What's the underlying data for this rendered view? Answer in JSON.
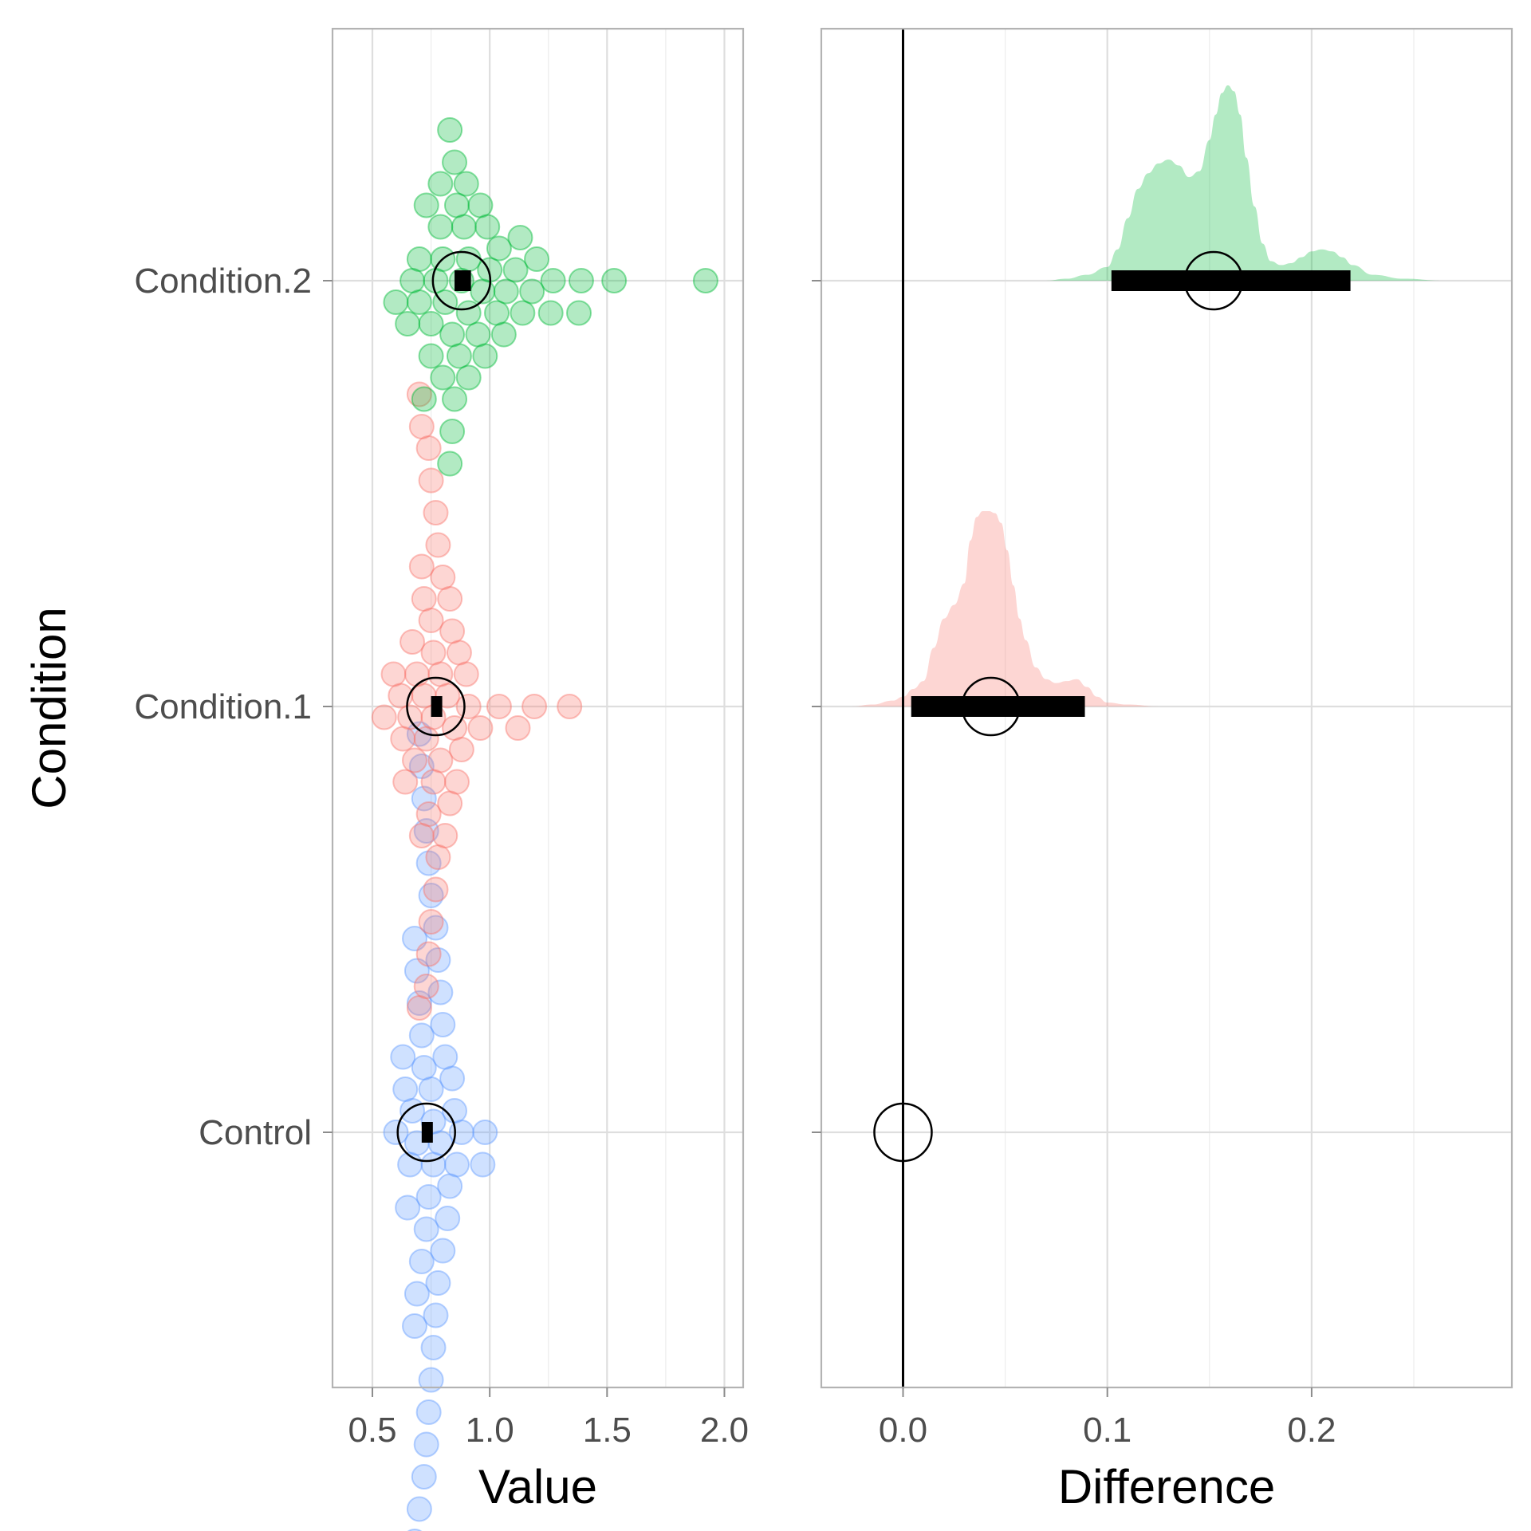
{
  "chart_data": [
    {
      "type": "scatter",
      "subtype": "swarm",
      "xlabel": "Value",
      "ylabel": "Condition",
      "xlim": [
        0.33,
        2.08
      ],
      "x_ticks": [
        "0.5",
        "1.0",
        "1.5",
        "2.0"
      ],
      "x_tick_values": [
        0.5,
        1.0,
        1.5,
        2.0
      ],
      "categories": [
        "Control",
        "Condition.1",
        "Condition.2"
      ],
      "grid": true,
      "legend": "none",
      "series": [
        {
          "category": "Control",
          "color": "#619CFF",
          "mean": 0.73,
          "ci": [
            0.71,
            0.75
          ],
          "values": [
            0.64,
            0.68,
            0.7,
            0.72,
            0.74,
            0.76,
            0.78,
            0.8,
            0.83,
            0.86,
            0.65,
            0.69,
            0.73,
            0.77,
            0.81,
            0.85,
            0.67,
            0.71,
            0.75,
            0.79,
            0.84,
            0.68,
            0.72,
            0.76,
            0.8,
            0.7,
            0.74,
            0.78,
            0.66,
            0.73,
            0.82,
            0.69,
            0.75,
            0.71,
            0.77,
            0.63,
            0.88,
            0.97,
            0.98,
            0.6,
            0.72,
            0.74,
            0.7,
            0.76,
            0.68,
            0.73,
            0.79,
            0.71,
            0.75,
            0.69
          ]
        },
        {
          "category": "Condition.1",
          "color": "#F8766D",
          "mean": 0.77,
          "ci": [
            0.75,
            0.79
          ],
          "values": [
            0.55,
            0.59,
            0.63,
            0.67,
            0.71,
            0.75,
            0.79,
            0.83,
            0.87,
            0.91,
            0.96,
            1.04,
            1.12,
            1.19,
            1.34,
            0.62,
            0.66,
            0.7,
            0.74,
            0.78,
            0.82,
            0.86,
            0.9,
            0.64,
            0.68,
            0.72,
            0.76,
            0.8,
            0.84,
            0.88,
            0.69,
            0.73,
            0.77,
            0.81,
            0.85,
            0.71,
            0.75,
            0.79,
            0.83,
            0.74,
            0.78,
            0.72,
            0.76,
            0.7,
            0.74,
            0.75,
            0.73,
            0.77,
            0.71,
            0.76
          ]
        },
        {
          "category": "Condition.2",
          "color": "#00BA38",
          "mean": 0.88,
          "ci": [
            0.85,
            0.92
          ],
          "values": [
            0.6,
            0.65,
            0.7,
            0.75,
            0.8,
            0.85,
            0.9,
            0.95,
            1.0,
            1.06,
            1.13,
            1.2,
            1.27,
            1.38,
            1.53,
            1.92,
            0.67,
            0.73,
            0.79,
            0.85,
            0.91,
            0.97,
            1.04,
            1.11,
            1.18,
            1.26,
            1.39,
            0.7,
            0.77,
            0.84,
            0.91,
            0.98,
            1.07,
            1.14,
            0.72,
            0.8,
            0.88,
            0.96,
            1.03,
            0.75,
            0.83,
            0.91,
            0.99,
            0.79,
            0.87,
            0.83,
            0.89,
            0.81,
            0.86,
            0.84
          ]
        }
      ]
    },
    {
      "type": "area",
      "subtype": "density-with-interval",
      "xlabel": "Difference",
      "xlim": [
        -0.04,
        0.298
      ],
      "x_ticks": [
        "0.0",
        "0.1",
        "0.2"
      ],
      "x_tick_values": [
        0.0,
        0.1,
        0.2
      ],
      "reference_line_x": 0.0,
      "categories": [
        "Control",
        "Condition.1",
        "Condition.2"
      ],
      "grid": true,
      "legend": "none",
      "series": [
        {
          "category": "Control",
          "point_estimate": 0.0
        },
        {
          "category": "Condition.1",
          "color": "#F8766D",
          "point_estimate": 0.043,
          "ci": [
            0.004,
            0.089
          ],
          "density": {
            "x": [
              -0.025,
              -0.015,
              -0.005,
              0.0,
              0.005,
              0.01,
              0.015,
              0.02,
              0.025,
              0.03,
              0.033,
              0.036,
              0.039,
              0.042,
              0.045,
              0.048,
              0.051,
              0.054,
              0.057,
              0.06,
              0.065,
              0.07,
              0.075,
              0.08,
              0.085,
              0.09,
              0.095,
              0.1,
              0.11,
              0.125
            ],
            "y": [
              0.0,
              0.01,
              0.03,
              0.05,
              0.09,
              0.13,
              0.3,
              0.45,
              0.52,
              0.63,
              0.85,
              0.97,
              1.0,
              1.0,
              0.99,
              0.94,
              0.8,
              0.62,
              0.45,
              0.34,
              0.2,
              0.14,
              0.12,
              0.13,
              0.14,
              0.1,
              0.05,
              0.02,
              0.01,
              0.0
            ]
          }
        },
        {
          "category": "Condition.2",
          "color": "#00BA38",
          "point_estimate": 0.152,
          "ci": [
            0.102,
            0.219
          ],
          "density": {
            "x": [
              0.07,
              0.08,
              0.09,
              0.1,
              0.105,
              0.11,
              0.115,
              0.12,
              0.125,
              0.13,
              0.135,
              0.14,
              0.145,
              0.15,
              0.153,
              0.156,
              0.159,
              0.162,
              0.165,
              0.168,
              0.172,
              0.176,
              0.18,
              0.185,
              0.19,
              0.195,
              0.2,
              0.205,
              0.21,
              0.215,
              0.22,
              0.23,
              0.245,
              0.265
            ],
            "y": [
              0.0,
              0.01,
              0.03,
              0.07,
              0.16,
              0.32,
              0.47,
              0.55,
              0.6,
              0.62,
              0.59,
              0.53,
              0.56,
              0.72,
              0.85,
              0.96,
              1.0,
              0.97,
              0.85,
              0.63,
              0.38,
              0.19,
              0.1,
              0.08,
              0.09,
              0.12,
              0.15,
              0.16,
              0.15,
              0.12,
              0.08,
              0.03,
              0.01,
              0.0
            ]
          }
        }
      ]
    }
  ]
}
